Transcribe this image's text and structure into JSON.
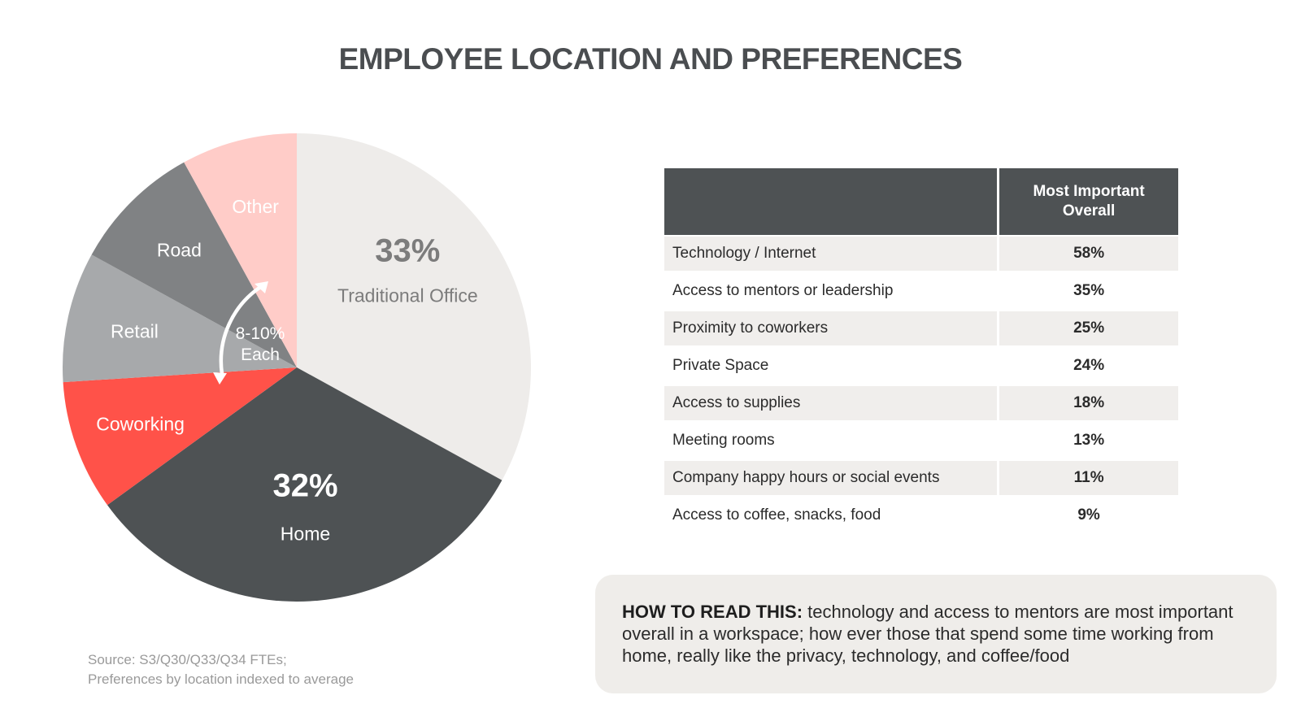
{
  "title": "EMPLOYEE LOCATION AND PREFERENCES",
  "chart_data": {
    "type": "pie",
    "title": "Employee Location",
    "slices": [
      {
        "name": "Traditional Office",
        "value": 33,
        "percent_label": "33%",
        "label": "Traditional Office",
        "color": "#eeecea",
        "text_color": "#7c7c7c"
      },
      {
        "name": "Home",
        "value": 32,
        "percent_label": "32%",
        "label": "Home",
        "color": "#4e5254",
        "text_color": "#ffffff"
      },
      {
        "name": "Coworking",
        "value": 9,
        "percent_label": "",
        "label": "Coworking",
        "color": "#ff5249",
        "text_color": "#ffffff"
      },
      {
        "name": "Retail",
        "value": 9,
        "percent_label": "",
        "label": "Retail",
        "color": "#a7a9ab",
        "text_color": "#ffffff"
      },
      {
        "name": "Road",
        "value": 9,
        "percent_label": "",
        "label": "Road",
        "color": "#808284",
        "text_color": "#ffffff"
      },
      {
        "name": "Other",
        "value": 8,
        "percent_label": "",
        "label": "Other",
        "color": "#ffccc8",
        "text_color": "#ffffff"
      }
    ],
    "annotation": [
      "8-10%",
      "Each"
    ]
  },
  "table": {
    "header_label": "",
    "header_value": [
      "Most Important",
      "Overall"
    ],
    "rows": [
      {
        "label": "Technology / Internet",
        "value": "58%"
      },
      {
        "label": "Access to mentors or leadership",
        "value": "35%"
      },
      {
        "label": "Proximity to coworkers",
        "value": "25%"
      },
      {
        "label": "Private Space",
        "value": "24%"
      },
      {
        "label": "Access to supplies",
        "value": "18%"
      },
      {
        "label": "Meeting rooms",
        "value": "13%"
      },
      {
        "label": "Company happy hours or social events",
        "value": "11%"
      },
      {
        "label": "Access to coffee, snacks, food",
        "value": "9%"
      }
    ]
  },
  "source": [
    "Source: S3/Q30/Q33/Q34 FTEs;",
    "Preferences by location indexed to average"
  ],
  "note": {
    "lead": "HOW TO READ THIS:",
    "text": " technology and access to mentors are most important overall in a workspace; how ever those that spend some time working from home, really like the privacy, technology, and coffee/food"
  }
}
